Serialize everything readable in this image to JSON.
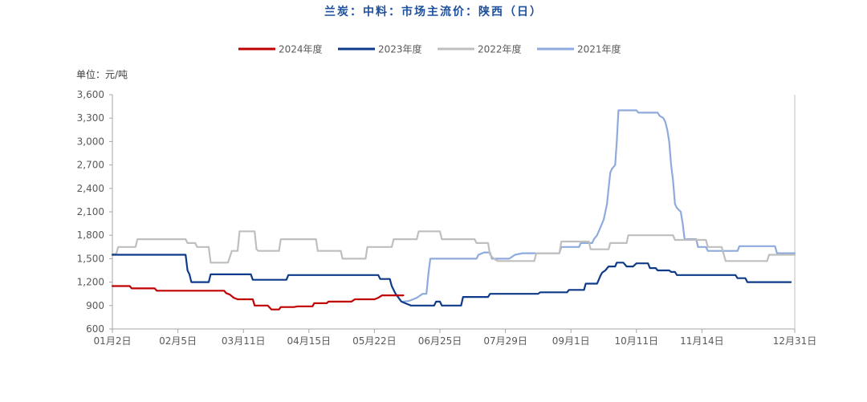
{
  "chart_data": {
    "type": "line",
    "title": "兰炭：中料：市场主流价：陕西（日）",
    "title_color": "#1c4f9c",
    "unit_label": "单位：元/吨",
    "xlabel": "",
    "ylabel": "",
    "ylim": [
      600,
      3600
    ],
    "y_ticks": [
      600,
      900,
      1200,
      1500,
      1800,
      2100,
      2400,
      2700,
      3000,
      3300,
      3600
    ],
    "y_tick_labels": [
      "600",
      "900",
      "1,200",
      "1,500",
      "1,800",
      "2,100",
      "2,400",
      "2,700",
      "3,000",
      "3,300",
      "3,600"
    ],
    "x_tick_labels": [
      "01月2日",
      "02月5日",
      "03月11日",
      "04月15日",
      "05月22日",
      "06月25日",
      "07月29日",
      "09月1日",
      "10月11日",
      "11月14日",
      "12月31日"
    ],
    "legend_position": "top",
    "grid": false,
    "series": [
      {
        "name": "2024年度",
        "color": "#c00000",
        "points": [
          [
            "01-02",
            1150
          ],
          [
            "01-11",
            1150
          ],
          [
            "01-12",
            1120
          ],
          [
            "01-24",
            1120
          ],
          [
            "01-25",
            1090
          ],
          [
            "03-01",
            1090
          ],
          [
            "03-02",
            1060
          ],
          [
            "03-04",
            1040
          ],
          [
            "03-06",
            1000
          ],
          [
            "03-08",
            980
          ],
          [
            "03-16",
            980
          ],
          [
            "03-17",
            900
          ],
          [
            "03-24",
            900
          ],
          [
            "03-26",
            850
          ],
          [
            "03-30",
            850
          ],
          [
            "03-31",
            880
          ],
          [
            "04-07",
            880
          ],
          [
            "04-09",
            890
          ],
          [
            "04-17",
            890
          ],
          [
            "04-18",
            930
          ],
          [
            "04-25",
            930
          ],
          [
            "04-26",
            950
          ],
          [
            "05-09",
            950
          ],
          [
            "05-11",
            980
          ],
          [
            "05-22",
            980
          ],
          [
            "05-24",
            1000
          ],
          [
            "05-26",
            1030
          ],
          [
            "06-06",
            1030
          ]
        ]
      },
      {
        "name": "2023年度",
        "color": "#0e3a8a",
        "points": [
          [
            "01-02",
            1550
          ],
          [
            "02-09",
            1550
          ],
          [
            "02-10",
            1350
          ],
          [
            "02-11",
            1300
          ],
          [
            "02-12",
            1200
          ],
          [
            "02-21",
            1200
          ],
          [
            "02-22",
            1300
          ],
          [
            "03-15",
            1300
          ],
          [
            "03-16",
            1230
          ],
          [
            "04-03",
            1230
          ],
          [
            "04-04",
            1290
          ],
          [
            "05-24",
            1290
          ],
          [
            "05-25",
            1240
          ],
          [
            "05-30",
            1240
          ],
          [
            "05-31",
            1150
          ],
          [
            "06-02",
            1050
          ],
          [
            "06-05",
            950
          ],
          [
            "06-08",
            920
          ],
          [
            "06-10",
            900
          ],
          [
            "06-22",
            900
          ],
          [
            "06-23",
            950
          ],
          [
            "06-25",
            950
          ],
          [
            "06-26",
            900
          ],
          [
            "07-06",
            900
          ],
          [
            "07-07",
            1010
          ],
          [
            "07-20",
            1010
          ],
          [
            "07-21",
            1050
          ],
          [
            "08-15",
            1050
          ],
          [
            "08-16",
            1070
          ],
          [
            "08-30",
            1070
          ],
          [
            "08-31",
            1100
          ],
          [
            "09-09",
            1100
          ],
          [
            "09-10",
            1180
          ],
          [
            "09-17",
            1180
          ],
          [
            "09-19",
            1280
          ],
          [
            "09-20",
            1320
          ],
          [
            "09-22",
            1350
          ],
          [
            "09-24",
            1400
          ],
          [
            "09-28",
            1400
          ],
          [
            "09-29",
            1450
          ],
          [
            "10-03",
            1450
          ],
          [
            "10-05",
            1400
          ],
          [
            "10-09",
            1400
          ],
          [
            "10-11",
            1440
          ],
          [
            "10-17",
            1440
          ],
          [
            "10-18",
            1380
          ],
          [
            "10-21",
            1380
          ],
          [
            "10-22",
            1350
          ],
          [
            "10-28",
            1350
          ],
          [
            "10-29",
            1330
          ],
          [
            "10-31",
            1330
          ],
          [
            "11-01",
            1290
          ],
          [
            "12-01",
            1290
          ],
          [
            "12-02",
            1250
          ],
          [
            "12-06",
            1250
          ],
          [
            "12-07",
            1200
          ],
          [
            "12-29",
            1200
          ]
        ]
      },
      {
        "name": "2022年度",
        "color": "#bfbfbf",
        "points": [
          [
            "01-02",
            1560
          ],
          [
            "01-04",
            1560
          ],
          [
            "01-05",
            1650
          ],
          [
            "01-14",
            1650
          ],
          [
            "01-15",
            1750
          ],
          [
            "02-09",
            1750
          ],
          [
            "02-10",
            1700
          ],
          [
            "02-14",
            1700
          ],
          [
            "02-15",
            1650
          ],
          [
            "02-21",
            1650
          ],
          [
            "02-22",
            1450
          ],
          [
            "03-03",
            1450
          ],
          [
            "03-05",
            1600
          ],
          [
            "03-08",
            1600
          ],
          [
            "03-09",
            1850
          ],
          [
            "03-17",
            1850
          ],
          [
            "03-18",
            1620
          ],
          [
            "03-19",
            1600
          ],
          [
            "03-30",
            1600
          ],
          [
            "03-31",
            1750
          ],
          [
            "04-19",
            1750
          ],
          [
            "04-20",
            1600
          ],
          [
            "05-03",
            1600
          ],
          [
            "05-04",
            1500
          ],
          [
            "05-17",
            1500
          ],
          [
            "05-18",
            1650
          ],
          [
            "05-31",
            1650
          ],
          [
            "06-01",
            1750
          ],
          [
            "06-13",
            1750
          ],
          [
            "06-14",
            1850
          ],
          [
            "06-25",
            1850
          ],
          [
            "06-26",
            1750
          ],
          [
            "07-13",
            1750
          ],
          [
            "07-14",
            1700
          ],
          [
            "07-20",
            1700
          ],
          [
            "07-21",
            1550
          ],
          [
            "07-23",
            1500
          ],
          [
            "07-25",
            1470
          ],
          [
            "08-13",
            1470
          ],
          [
            "08-14",
            1570
          ],
          [
            "08-26",
            1570
          ],
          [
            "08-27",
            1720
          ],
          [
            "09-12",
            1720
          ],
          [
            "09-13",
            1620
          ],
          [
            "09-24",
            1620
          ],
          [
            "09-25",
            1700
          ],
          [
            "10-05",
            1700
          ],
          [
            "10-06",
            1800
          ],
          [
            "10-30",
            1800
          ],
          [
            "10-31",
            1740
          ],
          [
            "11-16",
            1740
          ],
          [
            "11-17",
            1650
          ],
          [
            "11-24",
            1650
          ],
          [
            "11-26",
            1470
          ],
          [
            "12-17",
            1470
          ],
          [
            "12-18",
            1550
          ],
          [
            "12-31",
            1550
          ]
        ]
      },
      {
        "name": "2021年度",
        "color": "#8faadc",
        "points": [
          [
            "06-06",
            950
          ],
          [
            "06-09",
            960
          ],
          [
            "06-13",
            1000
          ],
          [
            "06-16",
            1050
          ],
          [
            "06-18",
            1050
          ],
          [
            "06-19",
            1300
          ],
          [
            "06-20",
            1500
          ],
          [
            "07-14",
            1500
          ],
          [
            "07-15",
            1550
          ],
          [
            "07-18",
            1580
          ],
          [
            "07-21",
            1580
          ],
          [
            "07-22",
            1500
          ],
          [
            "07-31",
            1500
          ],
          [
            "08-03",
            1550
          ],
          [
            "08-07",
            1570
          ],
          [
            "08-26",
            1570
          ],
          [
            "08-27",
            1650
          ],
          [
            "09-06",
            1650
          ],
          [
            "09-07",
            1700
          ],
          [
            "09-14",
            1700
          ],
          [
            "09-15",
            1750
          ],
          [
            "09-17",
            1800
          ],
          [
            "09-19",
            1900
          ],
          [
            "09-21",
            2000
          ],
          [
            "09-23",
            2200
          ],
          [
            "09-24",
            2400
          ],
          [
            "09-25",
            2600
          ],
          [
            "09-26",
            2650
          ],
          [
            "09-28",
            2700
          ],
          [
            "09-29",
            3000
          ],
          [
            "09-30",
            3400
          ],
          [
            "10-11",
            3400
          ],
          [
            "10-12",
            3370
          ],
          [
            "10-22",
            3370
          ],
          [
            "10-23",
            3330
          ],
          [
            "10-25",
            3300
          ],
          [
            "10-26",
            3250
          ],
          [
            "10-27",
            3150
          ],
          [
            "10-28",
            3000
          ],
          [
            "10-29",
            2700
          ],
          [
            "10-30",
            2500
          ],
          [
            "10-31",
            2200
          ],
          [
            "11-01",
            2150
          ],
          [
            "11-03",
            2100
          ],
          [
            "11-04",
            1950
          ],
          [
            "11-05",
            1750
          ],
          [
            "11-11",
            1750
          ],
          [
            "11-12",
            1650
          ],
          [
            "11-16",
            1650
          ],
          [
            "11-17",
            1600
          ],
          [
            "12-02",
            1600
          ],
          [
            "12-03",
            1660
          ],
          [
            "12-21",
            1660
          ],
          [
            "12-22",
            1570
          ],
          [
            "12-31",
            1570
          ]
        ]
      }
    ]
  }
}
